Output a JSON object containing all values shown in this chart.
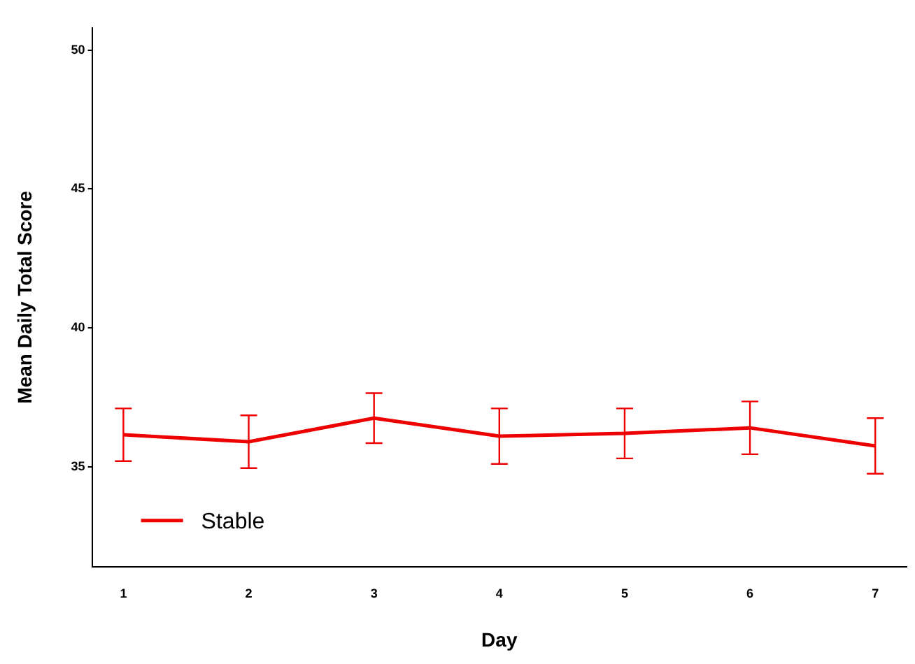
{
  "chart_data": {
    "type": "line",
    "xlabel": "Day",
    "ylabel": "Mean Daily Total Score",
    "x": [
      1,
      2,
      3,
      4,
      5,
      6,
      7
    ],
    "series": [
      {
        "name": "Stable",
        "color": "#ee0000",
        "values": [
          36.15,
          35.9,
          36.75,
          36.1,
          36.2,
          36.4,
          35.75
        ],
        "errors": [
          0.95,
          0.95,
          0.9,
          1.0,
          0.9,
          0.95,
          1.0
        ]
      }
    ],
    "xlim": [
      0.75,
      7.25
    ],
    "xticks": [
      1,
      2,
      3,
      4,
      5,
      6,
      7
    ],
    "ylim": [
      31.4,
      50.8
    ],
    "yticks": [
      35,
      40,
      45,
      50
    ],
    "grid": false,
    "legend": "bottom left",
    "marker": "none",
    "line_style": "solid"
  }
}
